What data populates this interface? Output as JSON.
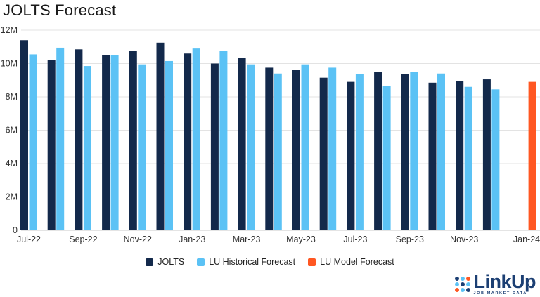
{
  "chart_data": {
    "type": "bar",
    "title": "JOLTS Forecast",
    "xlabel": "",
    "ylabel": "",
    "ylim": [
      0,
      12
    ],
    "yticks": [
      "0",
      "2M",
      "4M",
      "6M",
      "8M",
      "10M",
      "12M"
    ],
    "ytick_values": [
      0,
      2,
      4,
      6,
      8,
      10,
      12
    ],
    "value_unit": "millions",
    "categories": [
      "Jul-22",
      "Aug-22",
      "Sep-22",
      "Oct-22",
      "Nov-22",
      "Dec-22",
      "Jan-23",
      "Feb-23",
      "Mar-23",
      "Apr-23",
      "May-23",
      "Jun-23",
      "Jul-23",
      "Aug-23",
      "Sep-23",
      "Oct-23",
      "Nov-23",
      "Dec-23",
      "Jan-24"
    ],
    "xtick_labels": [
      "Jul-22",
      "Sep-22",
      "Nov-22",
      "Jan-23",
      "Mar-23",
      "May-23",
      "Jul-23",
      "Sep-23",
      "Nov-23",
      "Jan-24"
    ],
    "series": [
      {
        "name": "JOLTS",
        "color": "#13294b",
        "values": [
          11.4,
          10.2,
          10.85,
          10.5,
          10.75,
          11.25,
          10.6,
          10.0,
          10.35,
          9.75,
          9.6,
          9.15,
          8.9,
          9.5,
          9.35,
          8.85,
          8.95,
          9.05,
          null
        ]
      },
      {
        "name": "LU Historical Forecast",
        "color": "#5bc2f5",
        "values": [
          10.55,
          10.95,
          9.85,
          10.5,
          9.95,
          10.15,
          10.9,
          10.75,
          9.95,
          9.4,
          9.95,
          9.75,
          9.35,
          8.65,
          9.5,
          9.4,
          8.6,
          8.45,
          null
        ]
      },
      {
        "name": "LU Model Forecast",
        "color": "#ff5722",
        "values": [
          null,
          null,
          null,
          null,
          null,
          null,
          null,
          null,
          null,
          null,
          null,
          null,
          null,
          null,
          null,
          null,
          null,
          null,
          8.9
        ]
      }
    ],
    "grid": true,
    "legend_position": "bottom-center"
  },
  "logo": {
    "text": "LinkUp",
    "subtext": "JOB MARKET DATA",
    "dot_colors": [
      "#1c3f73",
      "#5bc2f5",
      "#ff5722",
      "#5bc2f5",
      "#1c3f73",
      "#5bc2f5",
      "#ff5722",
      "#5bc2f5",
      "#1c3f73"
    ]
  }
}
